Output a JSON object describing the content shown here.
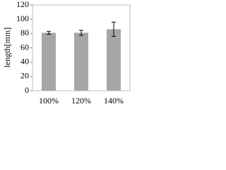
{
  "chart_data": {
    "type": "bar",
    "y_label": "length[mm]",
    "categories": [
      "100%",
      "120%",
      "140%"
    ],
    "values": [
      81,
      81,
      86
    ],
    "errors": [
      2,
      3.5,
      10
    ],
    "color": "#a6a6a6",
    "ylim": [
      0,
      120
    ],
    "yticks": [
      0,
      20,
      40,
      60,
      80,
      100,
      120
    ],
    "grid": false
  }
}
